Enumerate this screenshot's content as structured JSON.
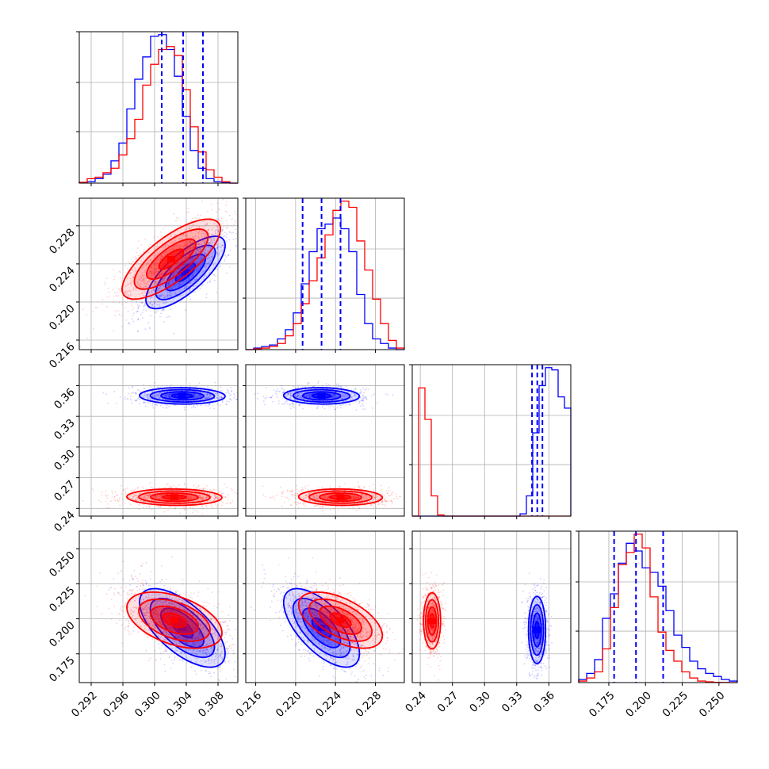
{
  "chart_data": {
    "type": "corner",
    "grid": true,
    "series": [
      {
        "color": "#0000ff"
      },
      {
        "color": "#ff0000"
      }
    ],
    "quantile_line_color": "#0000ff",
    "parameters": [
      {
        "range": [
          0.2905,
          0.3105
        ],
        "ticks": [
          "0.292",
          "0.296",
          "0.300",
          "0.304",
          "0.308"
        ],
        "tick_values": [
          0.292,
          0.296,
          0.3,
          0.304,
          0.308
        ],
        "quantiles": [
          0.3009,
          0.3036,
          0.3061
        ]
      },
      {
        "range": [
          0.215,
          0.2309
        ],
        "ticks": [
          "0.216",
          "0.220",
          "0.224",
          "0.228"
        ],
        "tick_values": [
          0.216,
          0.22,
          0.224,
          0.228
        ],
        "quantiles": [
          0.2207,
          0.2226,
          0.2245
        ]
      },
      {
        "range": [
          0.2325,
          0.3805
        ],
        "ticks": [
          "0.24",
          "0.27",
          "0.30",
          "0.33",
          "0.36"
        ],
        "tick_values": [
          0.24,
          0.27,
          0.3,
          0.33,
          0.36
        ],
        "quantiles": [
          0.3443,
          0.3492,
          0.354
        ]
      },
      {
        "range": [
          0.1545,
          0.2625
        ],
        "ticks": [
          "0.175",
          "0.200",
          "0.225",
          "0.250"
        ],
        "tick_values": [
          0.175,
          0.2,
          0.225,
          0.25
        ],
        "quantiles": [
          0.1786,
          0.1935,
          0.212
        ]
      }
    ],
    "histograms": [
      {
        "param": 0,
        "series": [
          {
            "color": "blue",
            "values": [
              0.5,
              1,
              3,
              6,
              15,
              27,
              50,
              70,
              85,
              99,
              100,
              90,
              72,
              45,
              22,
              10,
              3,
              1,
              0.3,
              0
            ]
          },
          {
            "color": "red",
            "values": [
              0.5,
              3,
              4,
              7,
              10,
              19,
              30,
              43,
              66,
              80,
              90,
              92,
              86,
              63,
              38,
              21,
              9,
              4,
              1,
              0
            ]
          }
        ]
      },
      {
        "param": 1,
        "series": [
          {
            "color": "blue",
            "values": [
              0,
              1,
              2,
              3,
              7,
              13,
              24,
              43,
              64,
              79,
              82,
              86,
              79,
              64,
              36,
              17,
              7,
              4,
              1,
              0
            ]
          },
          {
            "color": "red",
            "values": [
              0,
              0.5,
              1,
              2,
              4,
              9,
              17,
              30,
              45,
              60,
              75,
              91,
              97,
              93,
              71,
              52,
              33,
              17,
              6,
              1
            ]
          }
        ]
      },
      {
        "param": 2,
        "series": [
          {
            "color": "blue",
            "values": [
              0,
              0,
              0,
              0,
              0,
              0,
              0,
              0,
              0,
              0,
              0,
              0,
              0,
              0,
              0,
              0,
              0,
              1,
              9,
              37,
              58,
              66,
              65,
              53,
              48
            ]
          },
          {
            "color": "red",
            "values": [
              0,
              57,
              43,
              9,
              0.5,
              0,
              0,
              0,
              0,
              0,
              0,
              0,
              0,
              0,
              0,
              0,
              0,
              0,
              0,
              0,
              0,
              0,
              0,
              0,
              0
            ]
          }
        ]
      },
      {
        "param": 3,
        "series": [
          {
            "color": "blue",
            "values": [
              2,
              6,
              15,
              42,
              58,
              78,
              91,
              86,
              75,
              72,
              63,
              47,
              31,
              23,
              14,
              9,
              6,
              4,
              2,
              1
            ]
          },
          {
            "color": "red",
            "values": [
              1,
              3,
              7,
              22,
              49,
              77,
              85,
              97,
              88,
              56,
              33,
              21,
              14,
              7,
              3,
              1,
              0.5,
              0.2,
              0.1,
              0
            ]
          }
        ]
      }
    ],
    "clusters": [
      {
        "params": [
          0,
          1
        ],
        "series": [
          {
            "color": "blue",
            "cx": 0.3039,
            "cy": 0.2231,
            "sx": 0.0025,
            "sy": 0.0019,
            "rho": 0.75
          },
          {
            "color": "red",
            "cx": 0.3021,
            "cy": 0.2245,
            "sx": 0.0031,
            "sy": 0.0021,
            "rho": 0.75
          }
        ]
      },
      {
        "params": [
          0,
          2
        ],
        "series": [
          {
            "color": "blue",
            "cx": 0.3035,
            "cy": 0.35,
            "sx": 0.0027,
            "sy": 0.004,
            "rho": -0.05
          },
          {
            "color": "red",
            "cx": 0.3025,
            "cy": 0.251,
            "sx": 0.003,
            "sy": 0.004,
            "rho": -0.05
          }
        ]
      },
      {
        "params": [
          1,
          2
        ],
        "series": [
          {
            "color": "blue",
            "cx": 0.2226,
            "cy": 0.35,
            "sx": 0.0019,
            "sy": 0.004,
            "rho": -0.05
          },
          {
            "color": "red",
            "cx": 0.2245,
            "cy": 0.251,
            "sx": 0.0021,
            "sy": 0.004,
            "rho": -0.05
          }
        ]
      },
      {
        "params": [
          0,
          3
        ],
        "series": [
          {
            "color": "blue",
            "cx": 0.3035,
            "cy": 0.1935,
            "sx": 0.0027,
            "sy": 0.014,
            "rho": -0.65
          },
          {
            "color": "red",
            "cx": 0.3025,
            "cy": 0.199,
            "sx": 0.003,
            "sy": 0.01,
            "rho": -0.45
          }
        ]
      },
      {
        "params": [
          1,
          3
        ],
        "series": [
          {
            "color": "blue",
            "cx": 0.2226,
            "cy": 0.1935,
            "sx": 0.0019,
            "sy": 0.014,
            "rho": -0.65
          },
          {
            "color": "red",
            "cx": 0.2245,
            "cy": 0.199,
            "sx": 0.0021,
            "sy": 0.01,
            "rho": -0.55
          }
        ]
      },
      {
        "params": [
          2,
          3
        ],
        "series": [
          {
            "color": "blue",
            "cx": 0.349,
            "cy": 0.192,
            "sx": 0.004,
            "sy": 0.012,
            "rho": 0.0
          },
          {
            "color": "red",
            "cx": 0.251,
            "cy": 0.1985,
            "sx": 0.004,
            "sy": 0.01,
            "rho": 0.0
          }
        ]
      }
    ]
  }
}
